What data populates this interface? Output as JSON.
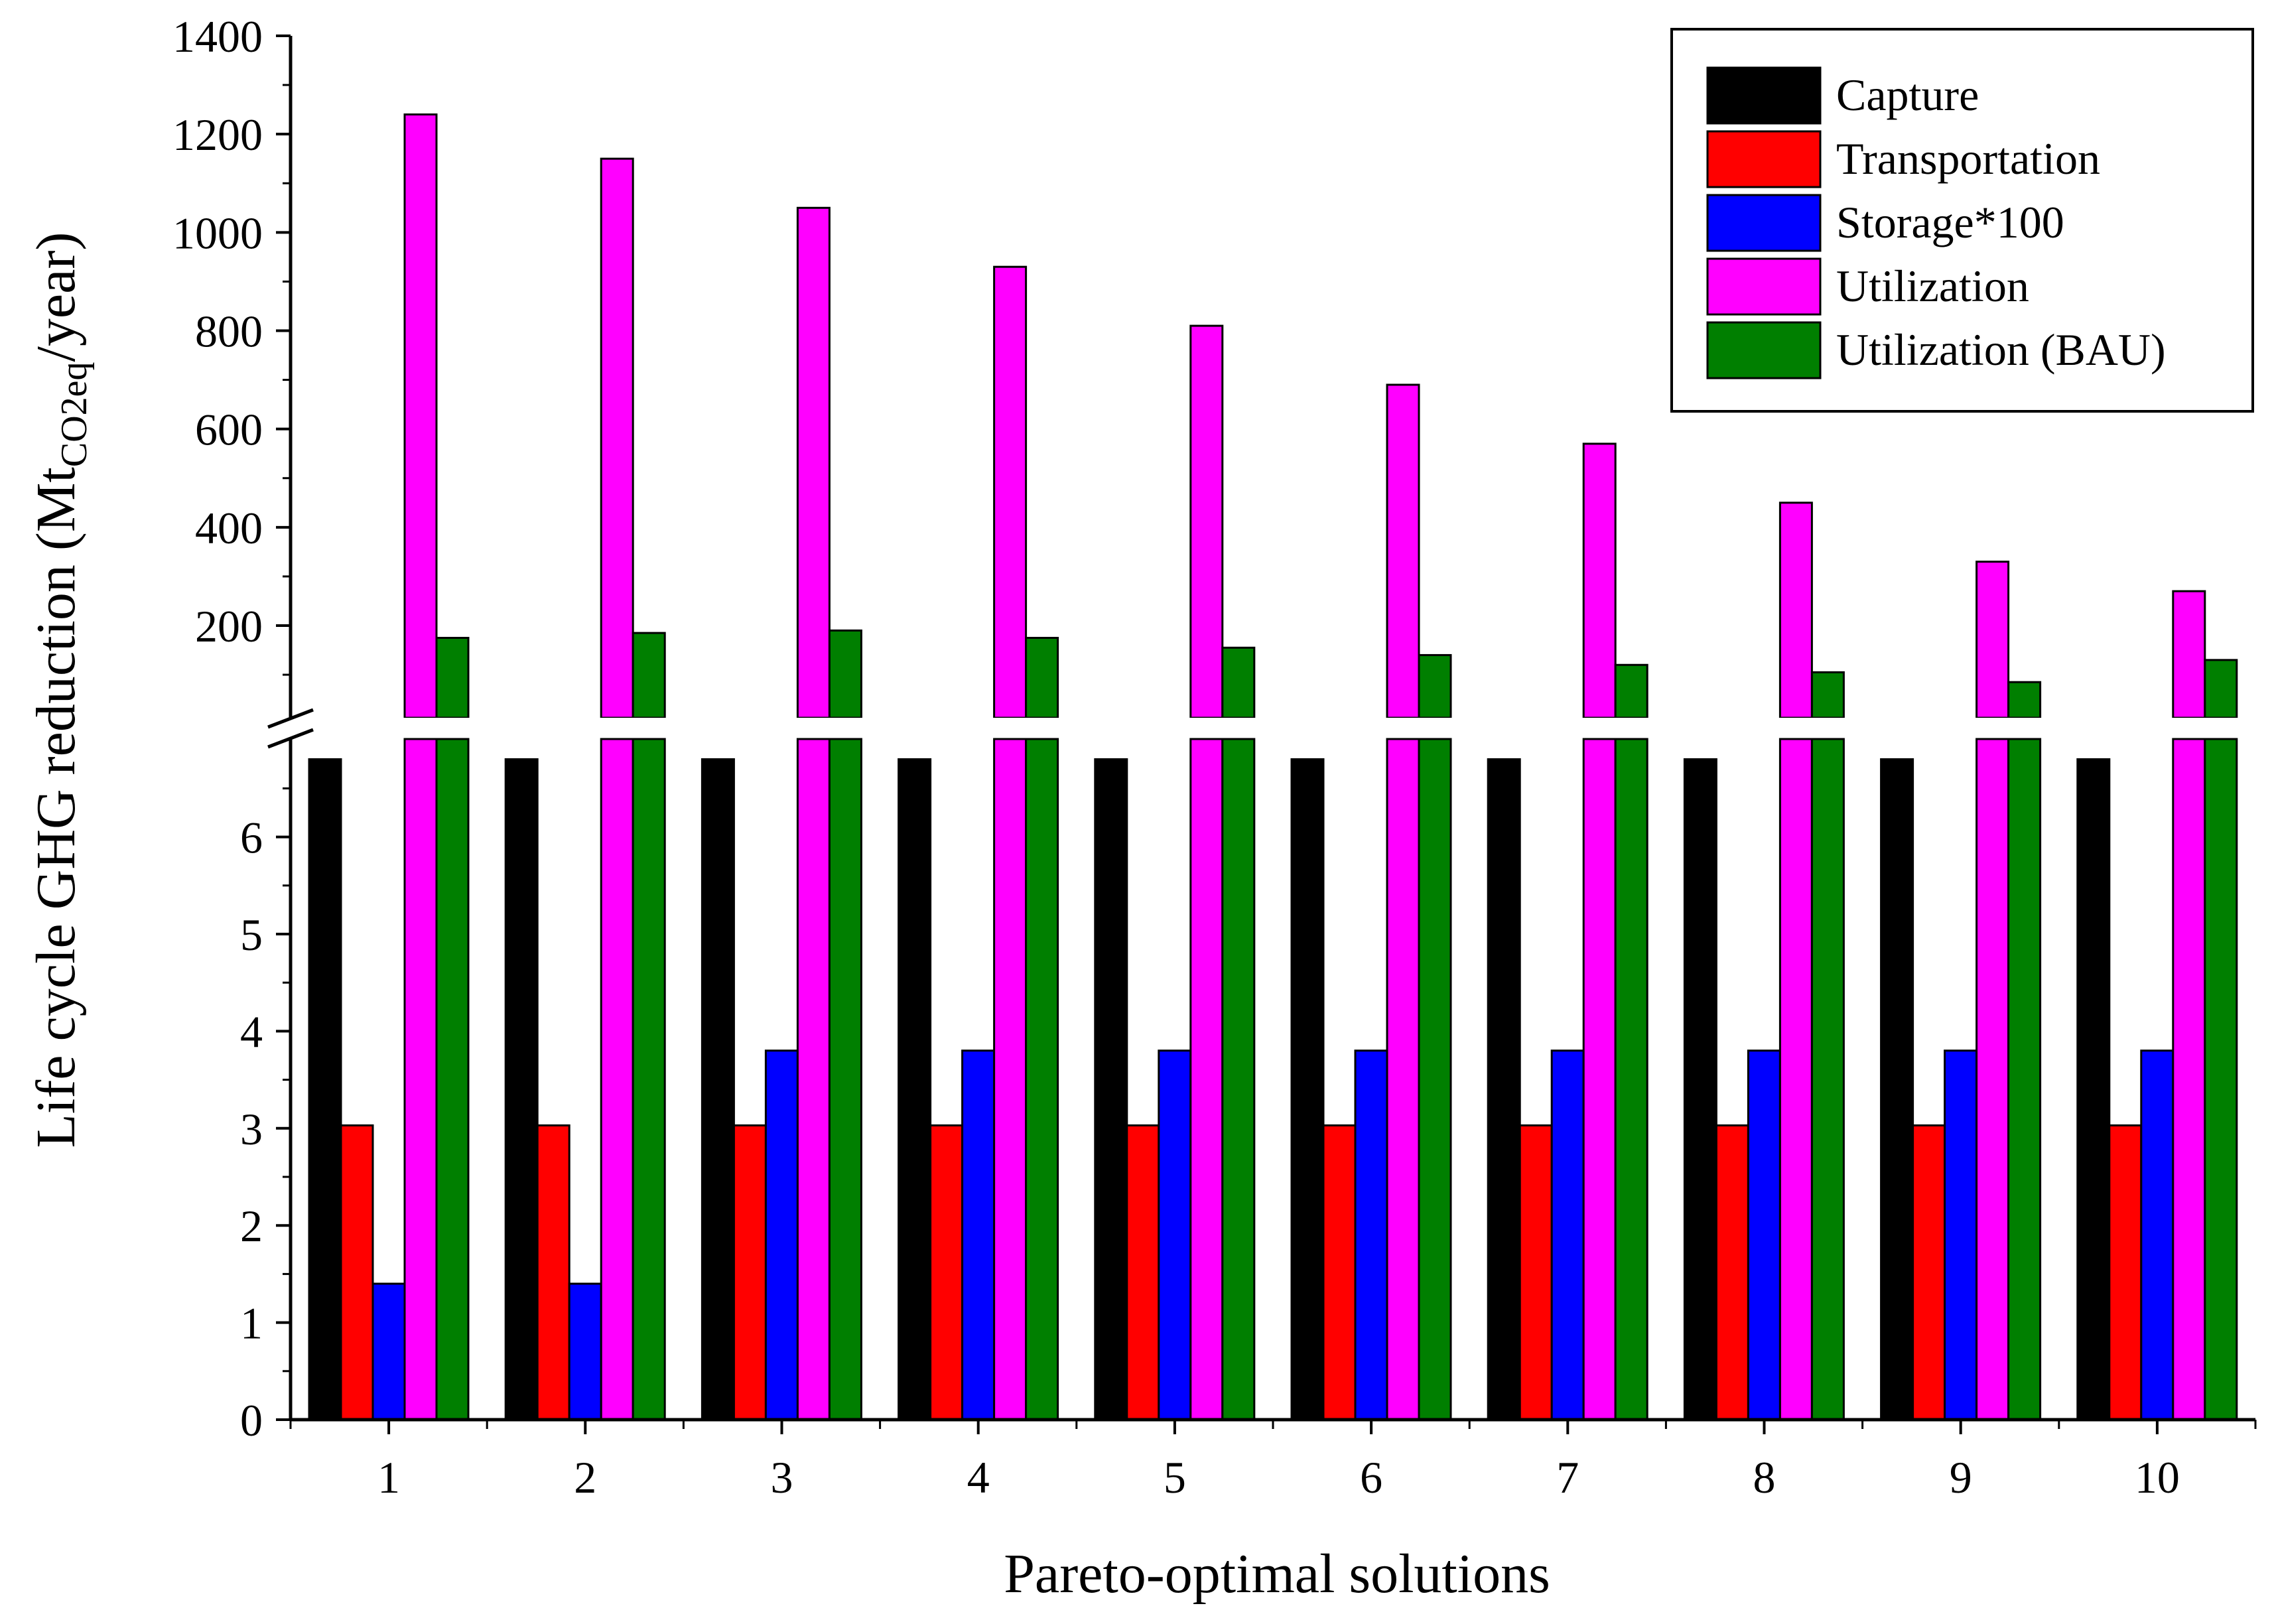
{
  "chart_data": {
    "type": "bar",
    "title": "",
    "xlabel": "Pareto-optimal solutions",
    "ylabel": {
      "prefix": "Life cycle GHG reduction (Mt",
      "subscript": "CO2eq",
      "suffix": "/year)"
    },
    "categories": [
      "1",
      "2",
      "3",
      "4",
      "5",
      "6",
      "7",
      "8",
      "9",
      "10"
    ],
    "axis_break": true,
    "lower_ylim": [
      0,
      6.8
    ],
    "lower_ticks": [
      "0",
      "1",
      "2",
      "3",
      "4",
      "5",
      "6"
    ],
    "upper_ylim": [
      0,
      1400
    ],
    "upper_ticks": [
      "200",
      "400",
      "600",
      "800",
      "1000",
      "1200",
      "1400"
    ],
    "legend_position": "top-right",
    "series": [
      {
        "name": "Capture",
        "color": "#000000",
        "values": [
          6.8,
          6.8,
          6.8,
          6.8,
          6.8,
          6.8,
          6.8,
          6.8,
          6.8,
          6.8
        ]
      },
      {
        "name": "Transportation",
        "color": "#ff0000",
        "values": [
          3.03,
          3.03,
          3.03,
          3.03,
          3.03,
          3.03,
          3.03,
          3.03,
          3.03,
          3.03
        ]
      },
      {
        "name": "Storage*100",
        "color": "#0000ff",
        "values": [
          1.4,
          1.4,
          3.8,
          3.8,
          3.8,
          3.8,
          3.8,
          3.8,
          3.8,
          3.8
        ]
      },
      {
        "name": "Utilization",
        "color": "#ff00ff",
        "values": [
          1240,
          1150,
          1050,
          930,
          810,
          690,
          570,
          450,
          330,
          270
        ]
      },
      {
        "name": "Utilization (BAU)",
        "color": "#007f00",
        "values": [
          175,
          185,
          190,
          175,
          155,
          140,
          120,
          105,
          85,
          130
        ]
      }
    ]
  }
}
